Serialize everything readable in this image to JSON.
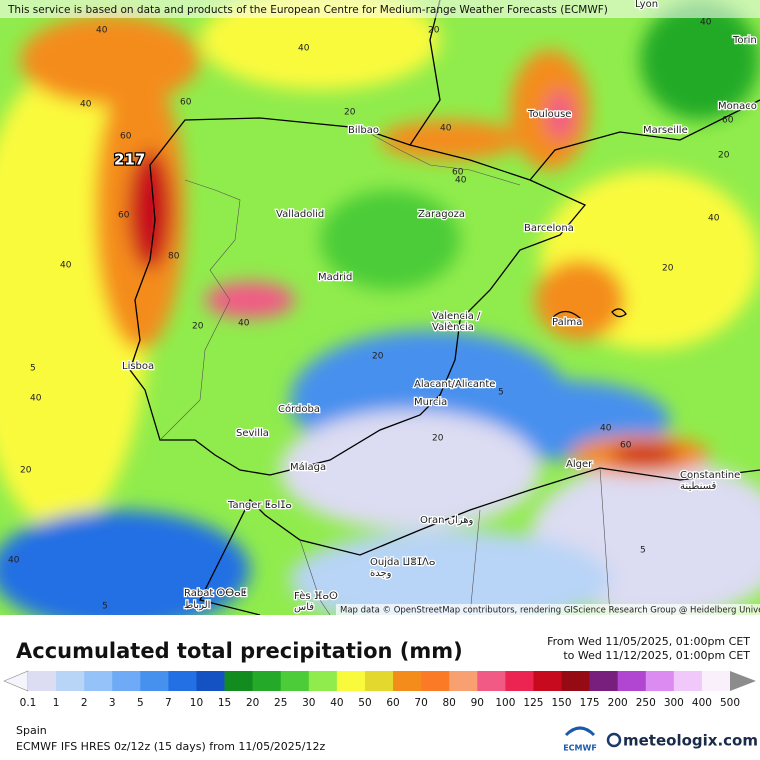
{
  "header": {
    "notice": "This service is based on data and products of the European Centre for Medium-range Weather Forecasts (ECMWF)",
    "attribution": "Map data © OpenStreetMap contributors, rendering GIScience Research Group @ Heidelberg University"
  },
  "map": {
    "cities": [
      "Lyon",
      "Torin",
      "Monaco",
      "Toulouse",
      "Marseille",
      "Bilbao",
      "Valladolid",
      "Zaragoza",
      "Barcelona",
      "Madrid",
      "Valencia /",
      "València",
      "Palma",
      "Lisboa",
      "Alacant/Alicante",
      "Murcia",
      "Córdoba",
      "Sevilla",
      "Málaga",
      "Tanger ⵟⴰⵏⵊⴰ",
      "Alger",
      "Constantine",
      "قسنطينة",
      "Oran وهران",
      "Oujda ⵡⴻⵊⴷⴰ",
      "وجدة",
      "Rabat ⵔⴱⴰⵟ",
      "الرباط",
      "Fès ⴼⴰⵙ",
      "فاس"
    ],
    "max_label": "217",
    "contour_labels": [
      "40",
      "60",
      "40",
      "60",
      "80",
      "40",
      "60",
      "40",
      "20",
      "40",
      "20",
      "40",
      "60",
      "40",
      "60",
      "20",
      "40",
      "20",
      "40",
      "5",
      "20",
      "40",
      "20",
      "5",
      "20",
      "40",
      "60",
      "5",
      "20",
      "40",
      "5"
    ]
  },
  "title": "Accumulated total precipitation (mm)",
  "period": {
    "from": "From Wed 11/05/2025, 01:00pm CET",
    "to": "to Wed 11/12/2025, 01:00pm CET"
  },
  "legend": {
    "labels": [
      "0.1",
      "1",
      "2",
      "3",
      "5",
      "7",
      "10",
      "15",
      "20",
      "25",
      "30",
      "40",
      "50",
      "60",
      "70",
      "80",
      "90",
      "100",
      "125",
      "150",
      "175",
      "200",
      "250",
      "300",
      "400",
      "500"
    ],
    "colors": [
      "#f4f4fc",
      "#dcdcf2",
      "#b8d4f6",
      "#96c2fa",
      "#6eaaf6",
      "#4690ee",
      "#2270e4",
      "#1452c4",
      "#128c1e",
      "#24aa28",
      "#4ccc38",
      "#90ec4c",
      "#fafa3c",
      "#e2d82e",
      "#f48c1c",
      "#fa7a26",
      "#f8a070",
      "#f25a86",
      "#ec2452",
      "#c80a1e",
      "#960a14",
      "#781e7c",
      "#b046d2",
      "#dc8cf0",
      "#f0c8fa",
      "#faf0fc",
      "#cccccc",
      "#8c8c8c"
    ]
  },
  "region": "Spain",
  "model": "ECMWF IFS HRES 0z/12z (15 days) from 11/05/2025/12z",
  "logos": {
    "ecmwf": "ECMWF",
    "meteologix": "meteologix.com"
  }
}
